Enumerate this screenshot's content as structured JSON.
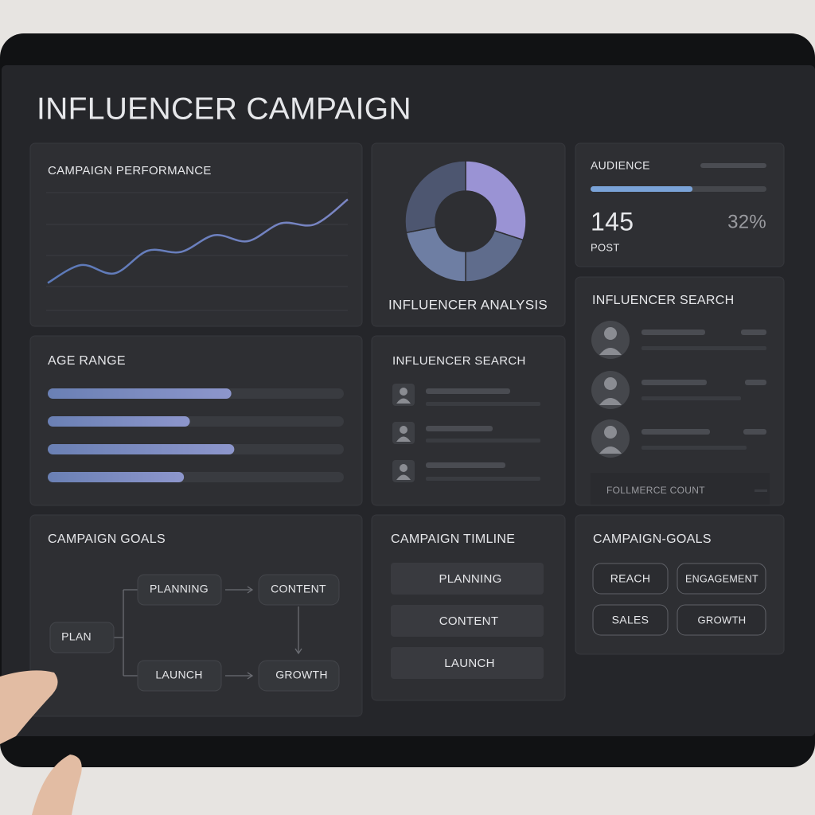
{
  "header": {
    "title": "INFLUENCER CAMPAIGN"
  },
  "performance": {
    "title": "CAMPAIGN PERFORMANCE",
    "values": [
      23,
      38,
      31,
      50,
      49,
      63,
      58,
      73,
      72,
      93
    ],
    "ylim": [
      0,
      100
    ],
    "color": "#7b86c4"
  },
  "analysis": {
    "title": "INFLUENCER ANALYSIS",
    "values": [
      30,
      20,
      22,
      28
    ],
    "colors": [
      "#9a93d4",
      "#5f6c8c",
      "#6e7ea3",
      "#4d5670"
    ]
  },
  "audience": {
    "title": "AUDIENCE",
    "progress": 58,
    "count": "145",
    "count_label": "POST",
    "share": "32%"
  },
  "search_side": {
    "title": "INFLUENCER SEARCH",
    "footer": "FOLLMERCE COUNT"
  },
  "age_range": {
    "title": "AGE RANGE",
    "values": [
      62,
      48,
      63,
      46
    ],
    "xlim": [
      0,
      100
    ]
  },
  "search": {
    "title": "INFLUENCER SEARCH"
  },
  "goals_flow": {
    "title": "CAMPAIGN GOALS",
    "nodes": [
      "PLAN",
      "PLANNING",
      "CONTENT",
      "LAUNCH",
      "GROWTH"
    ]
  },
  "timeline": {
    "title": "CAMPAIGN TIMLINE",
    "steps": [
      "PLANNING",
      "CONTENT",
      "LAUNCH"
    ]
  },
  "goals": {
    "title": "CAMPAIGN-GOALS",
    "tags": [
      "REACH",
      "ENGAGEMENT",
      "SALES",
      "GROWTH"
    ]
  }
}
